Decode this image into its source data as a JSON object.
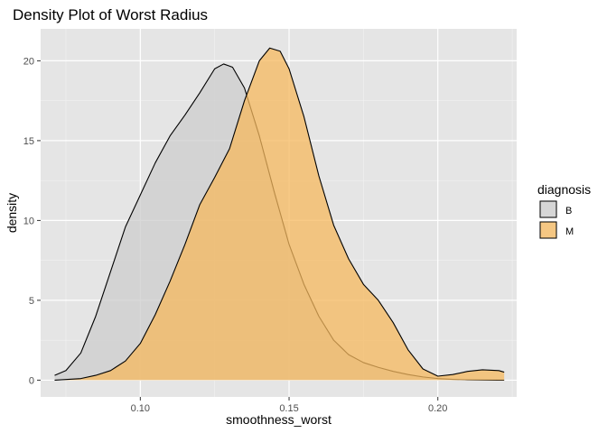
{
  "chart_data": {
    "type": "area",
    "title": "Density Plot of Worst Radius",
    "xlabel": "smoothness_worst",
    "ylabel": "density",
    "xlim": [
      0.0665,
      0.2265
    ],
    "ylim": [
      -1.05,
      22.0
    ],
    "x_ticks": [
      0.1,
      0.15,
      0.2
    ],
    "x_tick_labels": [
      "0.10",
      "0.15",
      "0.20"
    ],
    "y_ticks": [
      0,
      5,
      10,
      15,
      20
    ],
    "y_tick_labels": [
      "0",
      "5",
      "10",
      "15",
      "20"
    ],
    "grid": true,
    "legend": {
      "title": "diagnosis",
      "position": "right",
      "items": [
        {
          "label": "B",
          "color": "#cccccc"
        },
        {
          "label": "M",
          "color": "#f5b85e"
        }
      ]
    },
    "series": [
      {
        "name": "B",
        "color": "#cccccc",
        "points": [
          [
            0.0712,
            0.3
          ],
          [
            0.075,
            0.6
          ],
          [
            0.08,
            1.7
          ],
          [
            0.085,
            4.0
          ],
          [
            0.09,
            6.8
          ],
          [
            0.095,
            9.6
          ],
          [
            0.1,
            11.6
          ],
          [
            0.105,
            13.6
          ],
          [
            0.11,
            15.3
          ],
          [
            0.115,
            16.6
          ],
          [
            0.12,
            18.0
          ],
          [
            0.125,
            19.5
          ],
          [
            0.128,
            19.8
          ],
          [
            0.131,
            19.6
          ],
          [
            0.135,
            18.3
          ],
          [
            0.14,
            15.3
          ],
          [
            0.145,
            11.8
          ],
          [
            0.15,
            8.5
          ],
          [
            0.155,
            6.0
          ],
          [
            0.16,
            4.0
          ],
          [
            0.165,
            2.5
          ],
          [
            0.17,
            1.6
          ],
          [
            0.175,
            1.1
          ],
          [
            0.18,
            0.8
          ],
          [
            0.185,
            0.55
          ],
          [
            0.19,
            0.35
          ],
          [
            0.195,
            0.2
          ],
          [
            0.2,
            0.1
          ],
          [
            0.205,
            0.05
          ],
          [
            0.21,
            0.02
          ],
          [
            0.22,
            0.0
          ],
          [
            0.2223,
            0.0
          ]
        ]
      },
      {
        "name": "M",
        "color": "#f5b85e",
        "points": [
          [
            0.0712,
            0.0
          ],
          [
            0.08,
            0.1
          ],
          [
            0.085,
            0.3
          ],
          [
            0.09,
            0.6
          ],
          [
            0.095,
            1.2
          ],
          [
            0.1,
            2.3
          ],
          [
            0.105,
            4.1
          ],
          [
            0.11,
            6.2
          ],
          [
            0.115,
            8.5
          ],
          [
            0.12,
            11.0
          ],
          [
            0.125,
            12.7
          ],
          [
            0.13,
            14.5
          ],
          [
            0.135,
            17.5
          ],
          [
            0.14,
            20.0
          ],
          [
            0.1435,
            20.8
          ],
          [
            0.147,
            20.6
          ],
          [
            0.15,
            19.5
          ],
          [
            0.155,
            16.5
          ],
          [
            0.16,
            12.8
          ],
          [
            0.165,
            9.7
          ],
          [
            0.17,
            7.6
          ],
          [
            0.175,
            6.0
          ],
          [
            0.18,
            5.0
          ],
          [
            0.185,
            3.6
          ],
          [
            0.19,
            1.9
          ],
          [
            0.195,
            0.7
          ],
          [
            0.2,
            0.25
          ],
          [
            0.205,
            0.35
          ],
          [
            0.21,
            0.55
          ],
          [
            0.215,
            0.65
          ],
          [
            0.2205,
            0.6
          ],
          [
            0.2223,
            0.5
          ]
        ]
      }
    ]
  }
}
